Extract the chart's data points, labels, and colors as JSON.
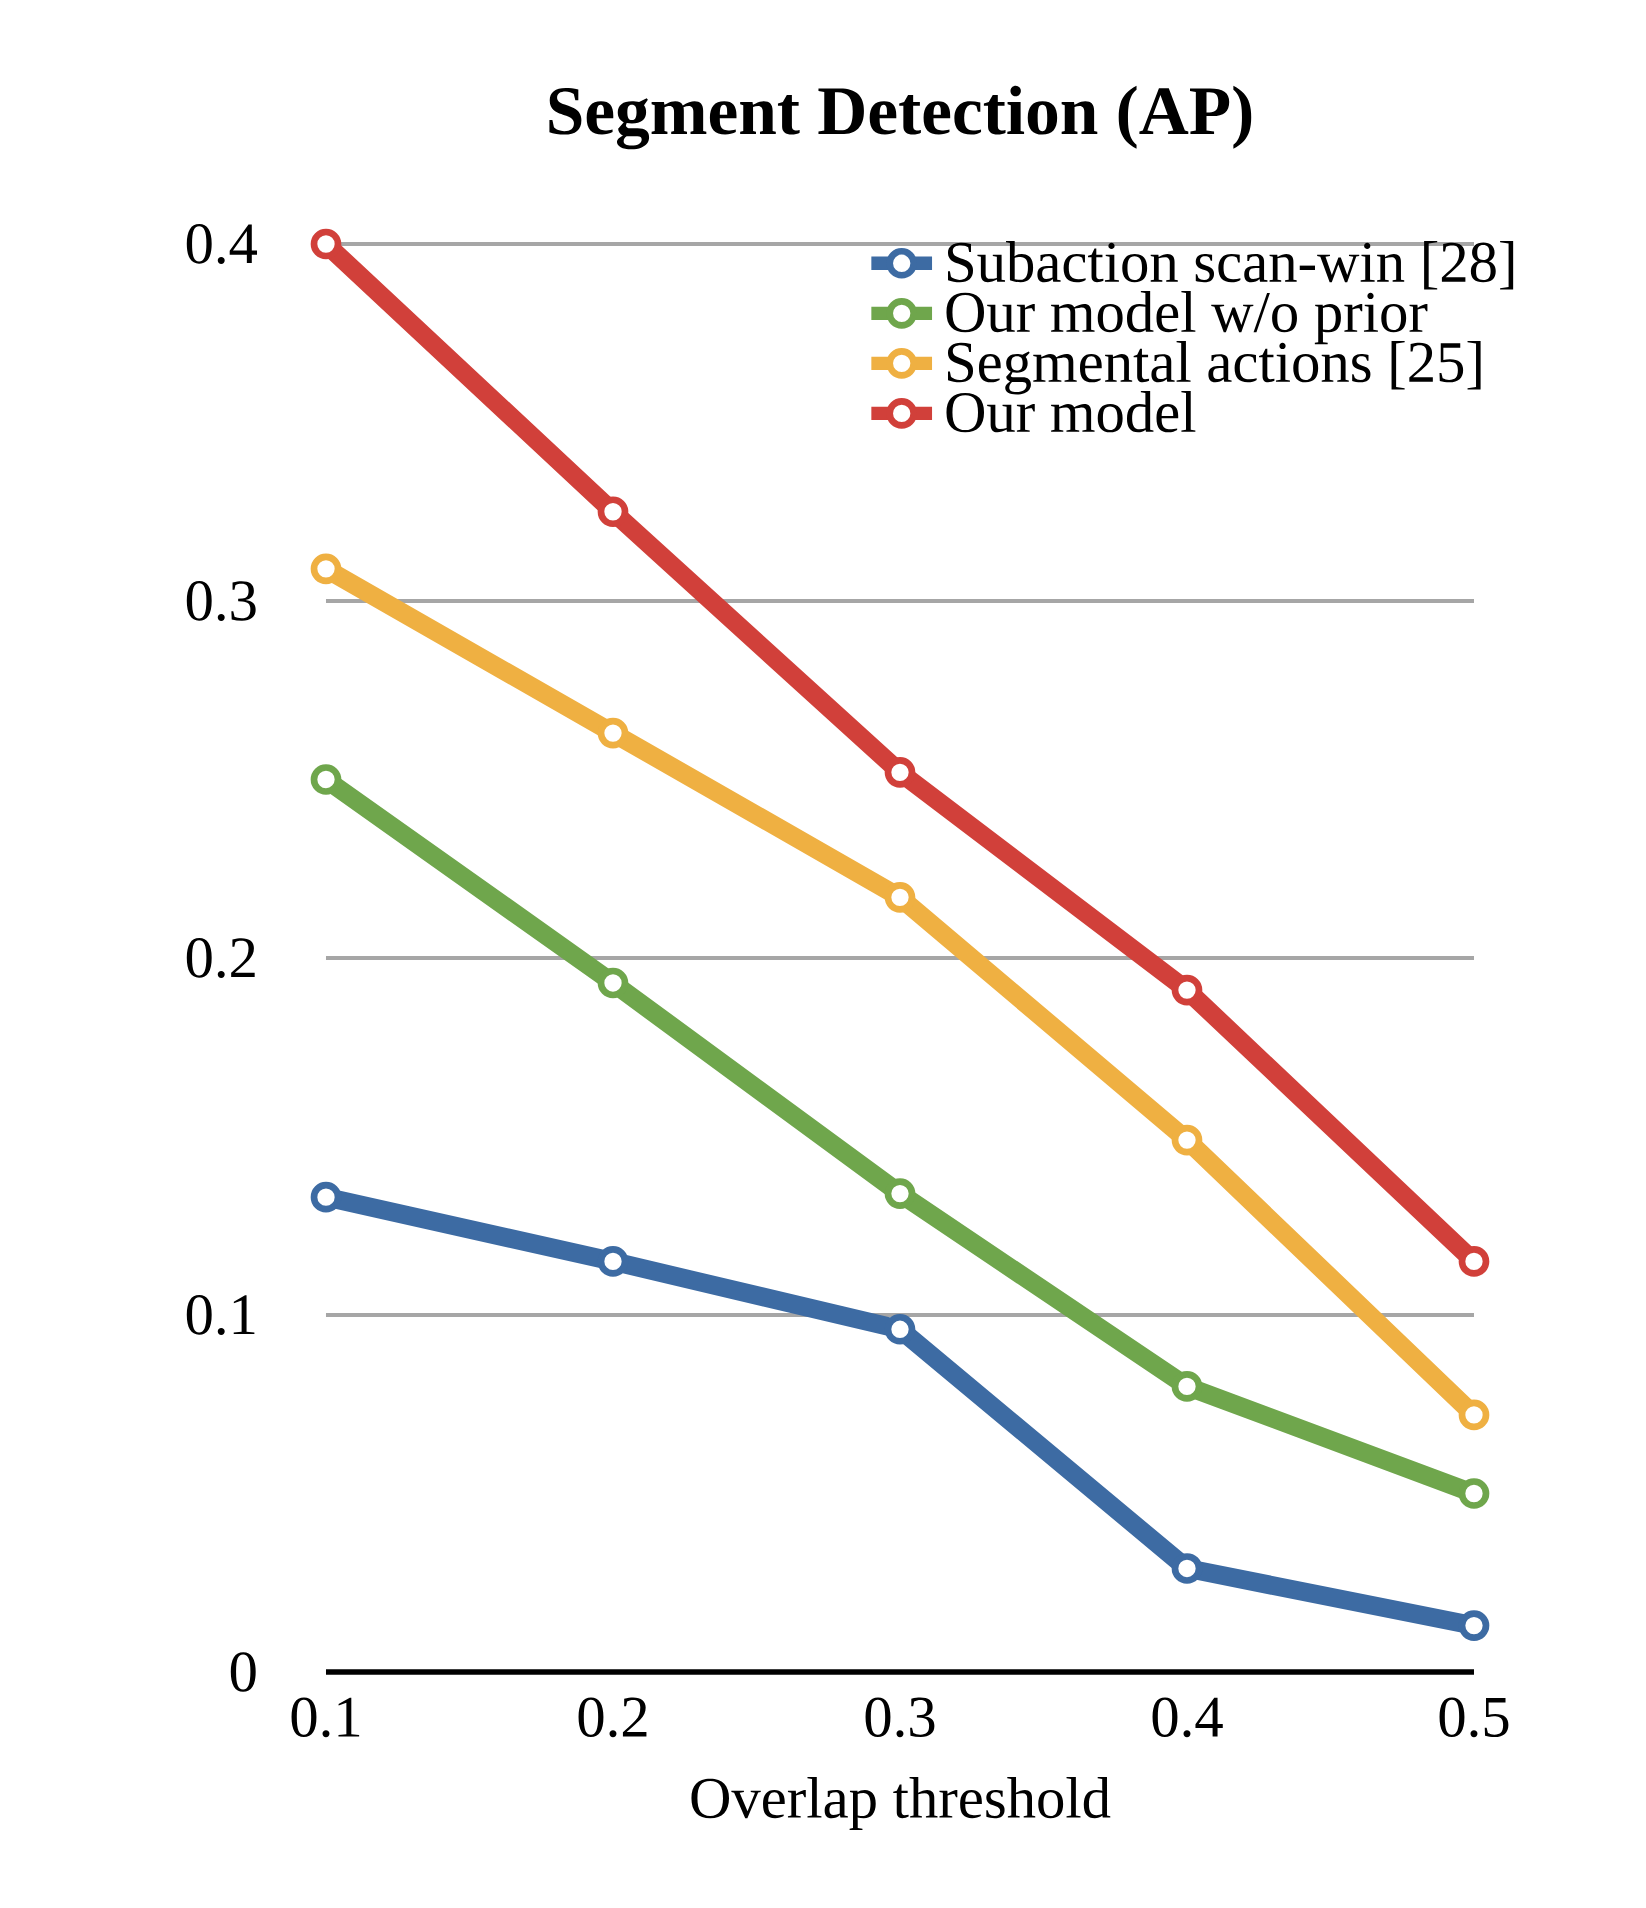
{
  "chart_data": {
    "type": "line",
    "title": "**Segment Detection (AP)**",
    "xlabel": "Overlap threshold",
    "categories": [
      "0.1",
      "0.2",
      "0.3",
      "0.4",
      "0.5"
    ],
    "series": [
      {
        "name": "Subaction scan-win [28]",
        "color": "#3d6ba3",
        "values": [
          0.133,
          0.115,
          0.096,
          0.029,
          0.013
        ]
      },
      {
        "name": "Our model w/o prior",
        "color": "#6fa64c",
        "values": [
          0.25,
          0.193,
          0.134,
          0.08,
          0.05
        ]
      },
      {
        "name": "Segmental actions [25]",
        "color": "#efb042",
        "values": [
          0.309,
          0.263,
          0.217,
          0.149,
          0.072
        ]
      },
      {
        "name": "Our model",
        "color": "#d1403a",
        "values": [
          0.4,
          0.325,
          0.252,
          0.191,
          0.115
        ]
      }
    ],
    "ylim": [
      0,
      0.4
    ],
    "yticks": [
      0,
      0.1,
      0.2,
      0.3,
      0.4
    ],
    "grid": "y",
    "legend": "top right",
    "marker": "circle",
    "line_style": "solid"
  }
}
